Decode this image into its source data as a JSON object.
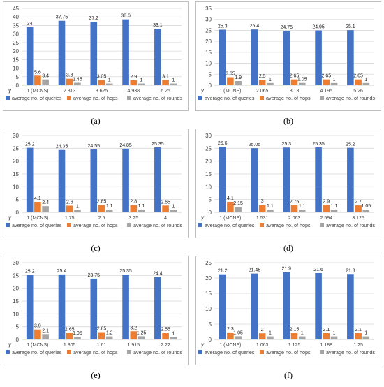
{
  "colors": {
    "queries": "#4472C4",
    "hops": "#ED7D31",
    "rounds": "#A5A5A5",
    "grid": "#D9D9D9",
    "frame": "#BFBFBF",
    "text": "#404040"
  },
  "chart_data": [
    {
      "type": "bar",
      "panel": "(a)",
      "x_symbol": "γ",
      "categories": [
        "1 (MCNS)",
        "2.313",
        "3.625",
        "4.938",
        "6.25"
      ],
      "series": [
        {
          "name": "average no. of queries",
          "values": [
            34,
            37.75,
            37.2,
            38.6,
            33.1
          ],
          "labels": [
            "34",
            "37.75",
            "37.2",
            "38.6",
            "33.1"
          ]
        },
        {
          "name": "average no. of hops",
          "values": [
            5.6,
            3.8,
            3.05,
            2.9,
            3.1
          ],
          "labels": [
            "5.6",
            "3.8",
            "3.05",
            "2.9",
            "3.1"
          ]
        },
        {
          "name": "average no. of rounds",
          "values": [
            3.4,
            1.45,
            1,
            1,
            1
          ],
          "labels": [
            "3.4",
            "1.45",
            "1",
            "1",
            "1"
          ]
        }
      ],
      "ylim": [
        0,
        45
      ],
      "yticks": [
        "0",
        "5",
        "10",
        "15",
        "20",
        "25",
        "30",
        "35",
        "40",
        "45"
      ],
      "grid": true,
      "legend": "bottom"
    },
    {
      "type": "bar",
      "panel": "(b)",
      "x_symbol": "γ",
      "categories": [
        "1 (MCNS)",
        "2.065",
        "3.13",
        "4.195",
        "5.26"
      ],
      "series": [
        {
          "name": "average no. of queries",
          "values": [
            25.3,
            25.4,
            24.75,
            24.95,
            25.1
          ],
          "labels": [
            "25.3",
            "25.4",
            "24.75",
            "24.95",
            "25.1"
          ]
        },
        {
          "name": "average no. of hops",
          "values": [
            3.65,
            2.5,
            2.65,
            2.65,
            2.65
          ],
          "labels": [
            "3.65",
            "2.5",
            "2.65",
            "2.65",
            "2.65"
          ]
        },
        {
          "name": "average no. of rounds",
          "values": [
            1.9,
            1,
            1.05,
            1,
            1
          ],
          "labels": [
            "1.9",
            "1",
            "1.05",
            "1",
            "1"
          ]
        }
      ],
      "ylim": [
        0,
        35
      ],
      "yticks": [
        "0",
        "5",
        "10",
        "15",
        "20",
        "25",
        "30",
        "35"
      ],
      "grid": true,
      "legend": "bottom"
    },
    {
      "type": "bar",
      "panel": "(c)",
      "x_symbol": "γ",
      "categories": [
        "1 (MCNS)",
        "1.75",
        "2.5",
        "3.25",
        "4"
      ],
      "series": [
        {
          "name": "average no. of queries",
          "values": [
            25.2,
            24.35,
            24.55,
            24.85,
            25.35
          ],
          "labels": [
            "25.2",
            "24.35",
            "24.55",
            "24.85",
            "25.35"
          ]
        },
        {
          "name": "average no. of hops",
          "values": [
            4.1,
            2.6,
            2.85,
            2.8,
            2.65
          ],
          "labels": [
            "4.1",
            "2.6",
            "2.85",
            "2.8",
            "2.65"
          ]
        },
        {
          "name": "average no. of rounds",
          "values": [
            2.4,
            1,
            1.1,
            1.1,
            1
          ],
          "labels": [
            "2.4",
            "1",
            "1.1",
            "1.1",
            "1"
          ]
        }
      ],
      "ylim": [
        0,
        30
      ],
      "yticks": [
        "0",
        "5",
        "10",
        "15",
        "20",
        "25",
        "30"
      ],
      "grid": true,
      "legend": "bottom"
    },
    {
      "type": "bar",
      "panel": "(d)",
      "x_symbol": "γ",
      "categories": [
        "1 (MCNS)",
        "1.531",
        "2.063",
        "2.594",
        "3.125"
      ],
      "series": [
        {
          "name": "average no. of queries",
          "values": [
            25.6,
            25.05,
            25.3,
            25.35,
            25.2
          ],
          "labels": [
            "25.6",
            "25.05",
            "25.3",
            "25.35",
            "25.2"
          ]
        },
        {
          "name": "average no. of hops",
          "values": [
            4.1,
            3,
            2.75,
            2.9,
            2.7
          ],
          "labels": [
            "4.1",
            "3",
            "2.75",
            "2.9",
            "2.7"
          ]
        },
        {
          "name": "average no. of rounds",
          "values": [
            2.15,
            1.1,
            1.1,
            1.1,
            1.05
          ],
          "labels": [
            "2.15",
            "1.1",
            "1.1",
            "1.1",
            "1.05"
          ]
        }
      ],
      "ylim": [
        0,
        30
      ],
      "yticks": [
        "0",
        "5",
        "10",
        "15",
        "20",
        "25",
        "30"
      ],
      "grid": true,
      "legend": "bottom"
    },
    {
      "type": "bar",
      "panel": "(e)",
      "x_symbol": "γ",
      "categories": [
        "1 (MCNS)",
        "1.305",
        "1.61",
        "1.915",
        "2.22"
      ],
      "series": [
        {
          "name": "average no. of queries",
          "values": [
            25.2,
            25.4,
            23.75,
            25.35,
            24.4
          ],
          "labels": [
            "25.2",
            "25.4",
            "23.75",
            "25.35",
            "24.4"
          ]
        },
        {
          "name": "average no. of hops",
          "values": [
            3.9,
            2.65,
            2.85,
            3.2,
            2.55
          ],
          "labels": [
            "3.9",
            "2.65",
            "2.85",
            "3.2",
            "2.55"
          ]
        },
        {
          "name": "average no. of rounds",
          "values": [
            2.1,
            1.05,
            1.2,
            1.25,
            1
          ],
          "labels": [
            "2.1",
            "1.05",
            "1.2",
            "1.25",
            "1"
          ]
        }
      ],
      "ylim": [
        0,
        30
      ],
      "yticks": [
        "0",
        "5",
        "10",
        "15",
        "20",
        "25",
        "30"
      ],
      "grid": true,
      "legend": "bottom"
    },
    {
      "type": "bar",
      "panel": "(f)",
      "x_symbol": "γ",
      "categories": [
        "1 (MCNS)",
        "1.063",
        "1.125",
        "1.188",
        "1.25"
      ],
      "series": [
        {
          "name": "average no. of queries",
          "values": [
            21.2,
            21.45,
            21.9,
            21.6,
            21.3
          ],
          "labels": [
            "21.2",
            "21.45",
            "21.9",
            "21.6",
            "21.3"
          ]
        },
        {
          "name": "average no. of hops",
          "values": [
            2.3,
            2,
            2.15,
            2.1,
            2.1
          ],
          "labels": [
            "2.3",
            "2",
            "2.15",
            "2.1",
            "2.1"
          ]
        },
        {
          "name": "average no. of rounds",
          "values": [
            1.05,
            1,
            1,
            1,
            1
          ],
          "labels": [
            "1.05",
            "1",
            "1",
            "1",
            "1"
          ]
        }
      ],
      "ylim": [
        0,
        25
      ],
      "yticks": [
        "0",
        "5",
        "10",
        "15",
        "20",
        "25"
      ],
      "grid": true,
      "legend": "bottom"
    }
  ]
}
